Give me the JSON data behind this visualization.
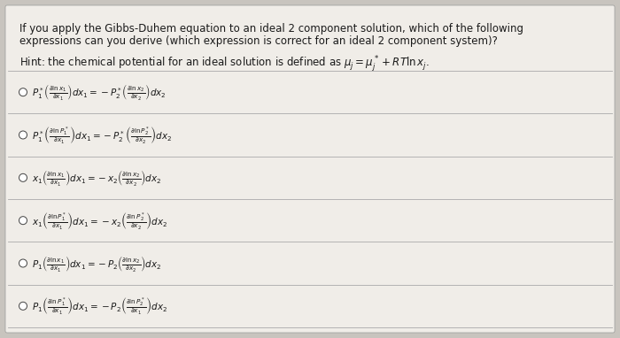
{
  "bg_color": "#c8c4be",
  "card_color": "#f0ede8",
  "title_lines": [
    "If you apply the Gibbs-Duhem equation to an ideal 2 component solution, which of the following",
    "expressions can you derive (which expression is correct for an ideal 2 component system)?"
  ],
  "hint_line": "Hint: the chemical potential for an ideal solution is defined as $\\mu_j = \\mu_j^* + RT\\ln x_j$.",
  "options": [
    "$P_1^* \\left(\\frac{\\partial \\ln x_1}{\\partial x_1}\\right) dx_1 = -P_2^* \\left(\\frac{\\partial \\ln x_2}{\\partial x_2}\\right) dx_2$",
    "$P_1^* \\left(\\frac{\\partial \\ln P_1^*}{\\partial x_1}\\right) dx_1 = -P_2^* \\left(\\frac{\\partial \\ln P_2^*}{\\partial x_2}\\right) dx_2$",
    "$x_1 \\left(\\frac{\\partial \\ln x_1}{\\partial x_1}\\right) dx_1 = -x_2 \\left(\\frac{\\partial \\ln x_2}{\\partial x_2}\\right) dx_2$",
    "$x_1 \\left(\\frac{\\partial \\ln P_1^*}{\\partial x_1}\\right) dx_1 = -x_2 \\left(\\frac{\\partial \\ln P_2^*}{\\partial x_2}\\right) dx_2$",
    "$P_1 \\left(\\frac{\\partial \\ln x_1}{\\partial x_1}\\right) dx_1 = -P_2 \\left(\\frac{\\partial \\ln x_2}{\\partial x_2}\\right) dx_2$",
    "$P_1 \\left(\\frac{\\partial \\ln P_1^*}{\\partial x_1}\\right) dx_1 = -P_2 \\left(\\frac{\\partial \\ln P_2^*}{\\partial x_1}\\right) dx_2$"
  ],
  "text_color": "#1a1a1a",
  "option_fontsize": 7.5,
  "title_fontsize": 8.5,
  "hint_fontsize": 8.5,
  "circle_color": "#ffffff",
  "circle_edge": "#444444",
  "line_color": "#aaaaaa",
  "card_edge_color": "#999999"
}
